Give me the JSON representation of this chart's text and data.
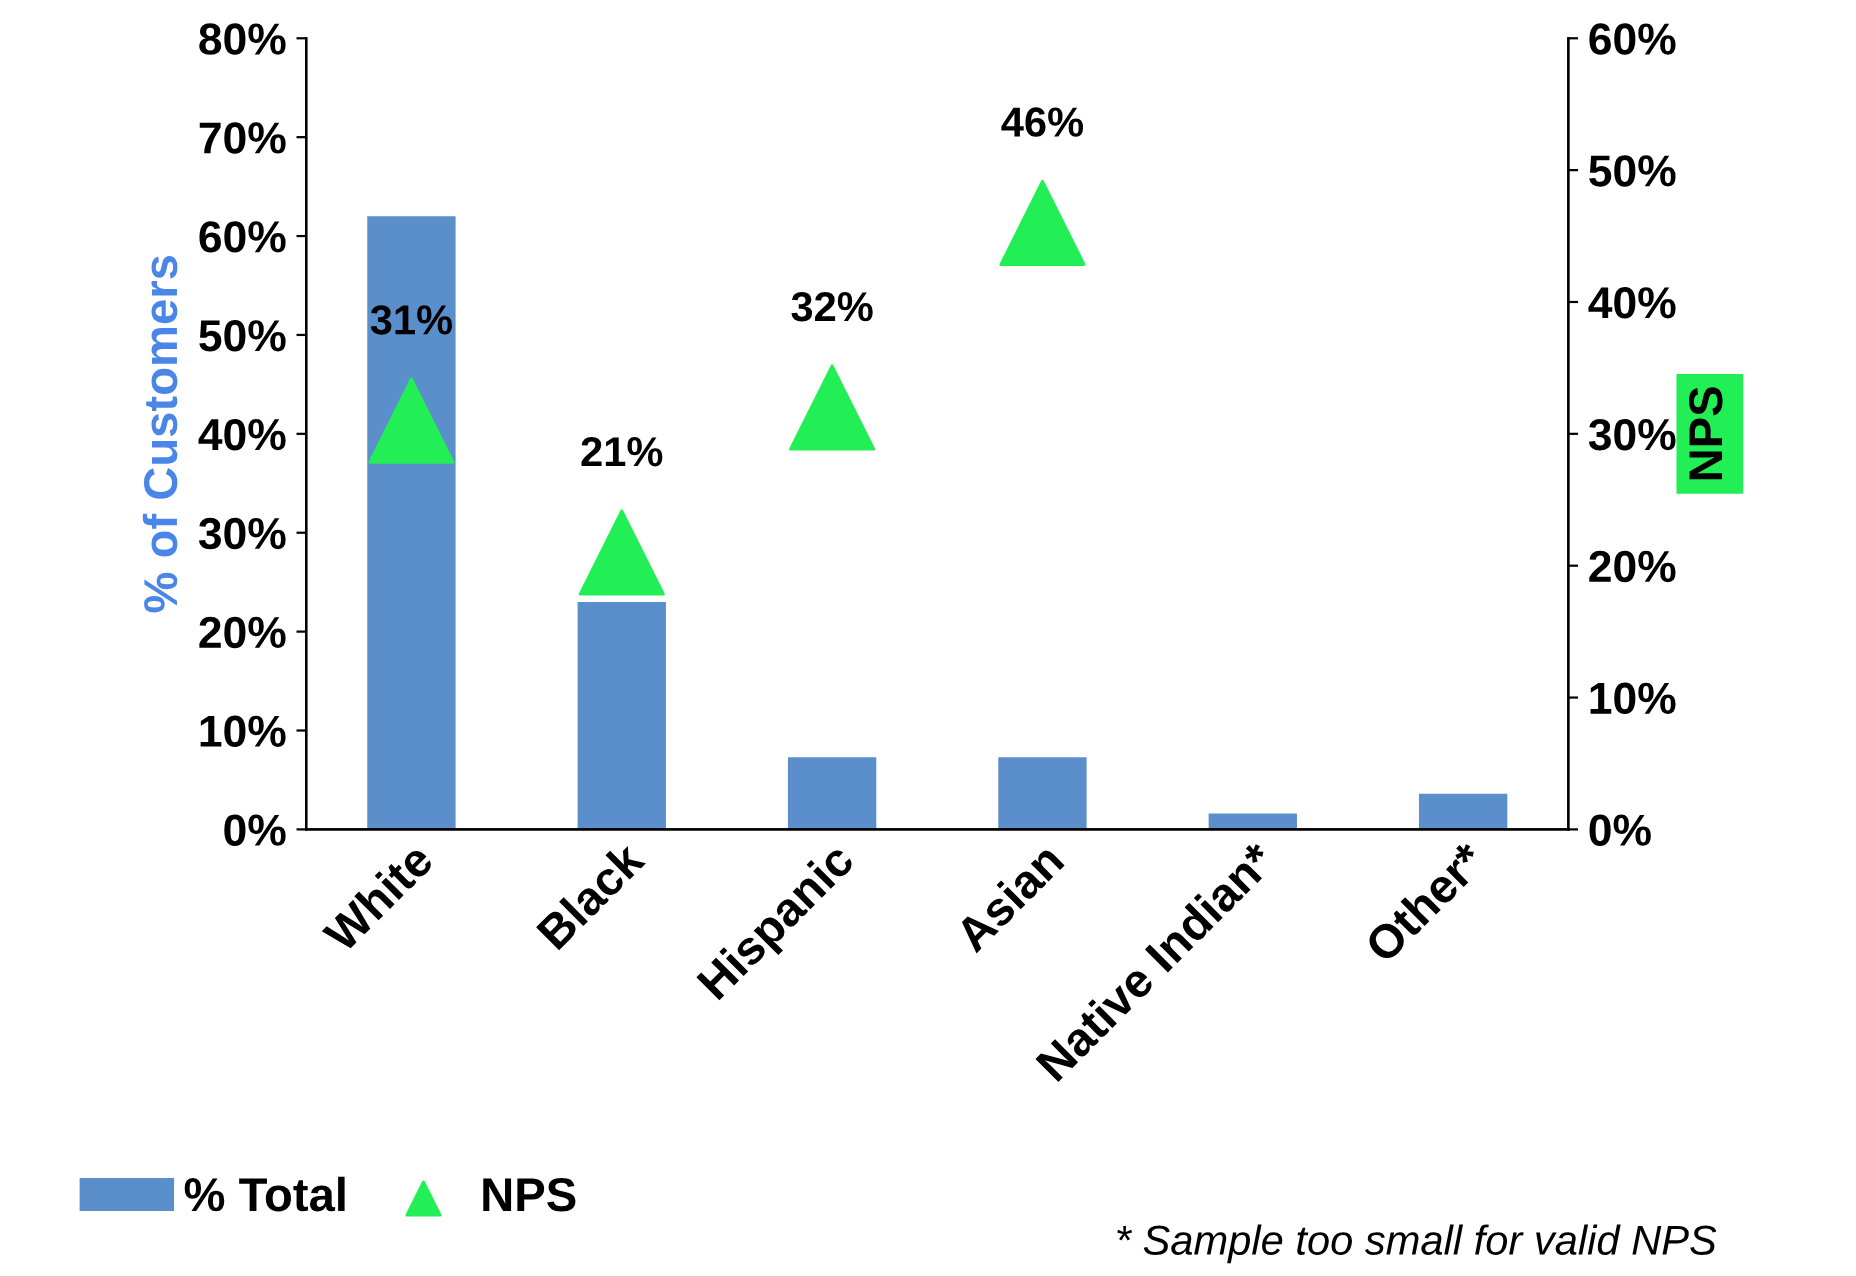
{
  "chart_data": {
    "type": "bar",
    "ylabel": "% of Customers",
    "y2label": "NPS",
    "categories": [
      "White",
      "Black",
      "Hispanic",
      "Asian",
      "Native Indian*",
      "Other*"
    ],
    "series": [
      {
        "name": "% Total",
        "color": "#5b8fcc",
        "values": [
          62,
          23,
          7.3,
          7.3,
          1.6,
          3.6
        ]
      },
      {
        "name": "NPS",
        "type": "scatter",
        "axis": "y2",
        "color": "#22ee55",
        "marker": "triangle",
        "values": [
          31,
          21,
          32,
          46,
          null,
          null
        ],
        "value_labels": [
          "31%",
          "21%",
          "32%",
          "46%",
          null,
          null
        ]
      }
    ],
    "ylim": [
      0,
      80
    ],
    "yticks": [
      {
        "value": 0,
        "label": "0%"
      },
      {
        "value": 10,
        "label": "10%"
      },
      {
        "value": 20,
        "label": "20%"
      },
      {
        "value": 30,
        "label": "30%"
      },
      {
        "value": 40,
        "label": "40%"
      },
      {
        "value": 50,
        "label": "50%"
      },
      {
        "value": 60,
        "label": "60%"
      },
      {
        "value": 70,
        "label": "70%"
      },
      {
        "value": 80,
        "label": "80%"
      }
    ],
    "y2lim": [
      0,
      60
    ],
    "y2ticks": [
      {
        "value": 0,
        "label": "0%"
      },
      {
        "value": 10,
        "label": "10%"
      },
      {
        "value": 20,
        "label": "20%"
      },
      {
        "value": 30,
        "label": "30%"
      },
      {
        "value": 40,
        "label": "40%"
      },
      {
        "value": 50,
        "label": "50%"
      },
      {
        "value": 60,
        "label": "60%"
      }
    ],
    "legend": "bottom left",
    "grid": false,
    "annotations": [
      "* Sample too small for valid NPS"
    ]
  }
}
